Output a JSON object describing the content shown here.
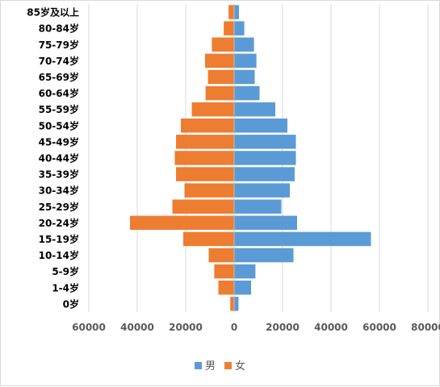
{
  "chart_data": {
    "type": "bar",
    "orientation": "horizontal",
    "categories": [
      "85岁及以上",
      "80-84岁",
      "75-79岁",
      "70-74岁",
      "65-69岁",
      "60-64岁",
      "55-59岁",
      "50-54岁",
      "45-49岁",
      "40-44岁",
      "35-39岁",
      "30-34岁",
      "25-29岁",
      "20-24岁",
      "15-19岁",
      "10-14岁",
      "5-9岁",
      "1-4岁",
      "0岁"
    ],
    "series": [
      {
        "name": "男",
        "color": "#5b9bd5",
        "values": [
          2000,
          4200,
          8200,
          9200,
          8500,
          10500,
          17000,
          22000,
          25500,
          25500,
          25000,
          23000,
          19500,
          26000,
          56500,
          24500,
          8800,
          7000,
          1800
        ]
      },
      {
        "name": "女",
        "color": "#ed7d31",
        "values": [
          2300,
          4300,
          9200,
          12000,
          10800,
          11800,
          17500,
          22000,
          24000,
          24500,
          24000,
          20500,
          25500,
          43000,
          21000,
          10500,
          8200,
          6500,
          1600
        ]
      }
    ],
    "x_tick_labels": [
      "60000",
      "40000",
      "20000",
      "0",
      "20000",
      "40000",
      "60000",
      "80000"
    ],
    "xlim": [
      -60000,
      80000
    ],
    "title": "",
    "xlabel": "",
    "ylabel": "",
    "grid": "vertical",
    "legend": "bottom"
  }
}
